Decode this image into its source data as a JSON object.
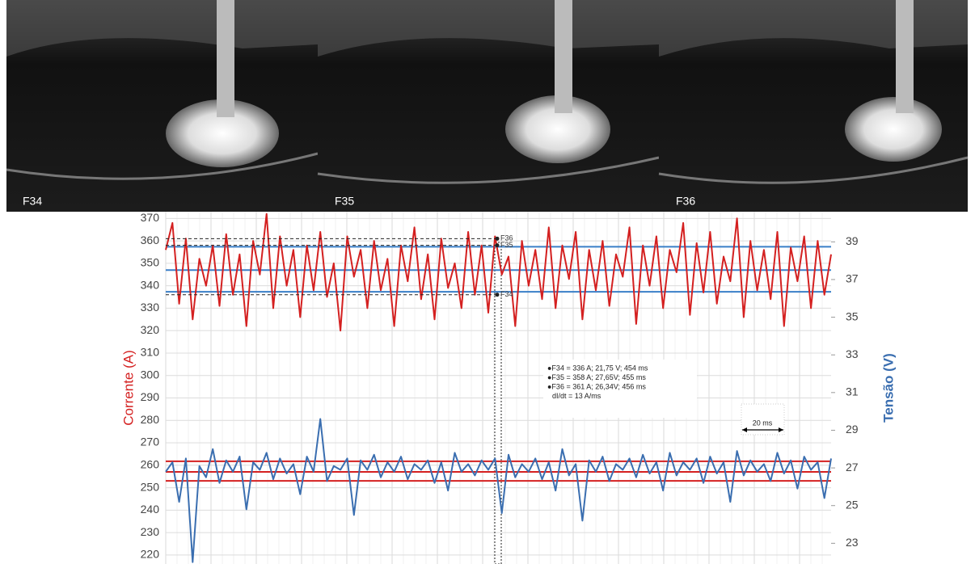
{
  "frames": [
    "F34",
    "F35",
    "F36"
  ],
  "chart_data": {
    "type": "line",
    "y_label": "Corrente (A)",
    "y2_label": "Tensão (V)",
    "ylim": [
      216,
      373
    ],
    "yticks": [
      220,
      230,
      240,
      250,
      260,
      270,
      280,
      290,
      300,
      310,
      320,
      330,
      340,
      350,
      360,
      370
    ],
    "y2lim": [
      21.9,
      40.6
    ],
    "y2ticks": [
      23,
      25,
      27,
      29,
      31,
      33,
      35,
      37,
      39
    ],
    "grid": true,
    "series": [
      {
        "name": "Corrente",
        "color": "#d42020",
        "values": [
          356,
          368,
          332,
          361,
          325,
          352,
          340,
          358,
          331,
          363,
          336,
          354,
          322,
          360,
          345,
          372,
          330,
          362,
          340,
          356,
          326,
          358,
          338,
          364,
          335,
          350,
          320,
          362,
          344,
          356,
          330,
          360,
          338,
          352,
          322,
          358,
          342,
          366,
          334,
          354,
          325,
          361,
          339,
          350,
          330,
          364,
          336,
          358,
          328,
          362,
          345,
          353,
          322,
          360,
          340,
          356,
          334,
          366,
          330,
          358,
          343,
          364,
          325,
          356,
          338,
          360,
          331,
          354,
          344,
          366,
          323,
          358,
          340,
          362,
          330,
          356,
          346,
          368,
          327,
          359,
          337,
          364,
          332,
          353,
          342,
          370,
          326,
          360,
          338,
          356,
          334,
          364,
          322,
          357,
          342,
          362,
          330,
          360,
          336,
          354
        ]
      },
      {
        "name": "Tensão",
        "color": "#3a6eb0",
        "axis": "y2",
        "values": [
          26.8,
          27.3,
          25.2,
          27.5,
          22.0,
          27.1,
          26.5,
          28.0,
          26.2,
          27.4,
          26.8,
          27.6,
          24.8,
          27.3,
          26.9,
          27.8,
          26.4,
          27.5,
          26.7,
          27.2,
          25.6,
          27.6,
          26.8,
          29.6,
          26.3,
          27.1,
          26.9,
          27.5,
          24.5,
          27.4,
          26.9,
          27.7,
          26.5,
          27.3,
          26.8,
          27.6,
          26.4,
          27.2,
          26.9,
          27.4,
          26.2,
          27.3,
          25.8,
          27.8,
          26.8,
          27.2,
          26.6,
          27.4,
          26.9,
          27.5,
          24.6,
          27.7,
          26.5,
          27.2,
          26.8,
          27.5,
          26.4,
          27.3,
          25.8,
          28.0,
          26.6,
          27.2,
          24.2,
          27.4,
          26.8,
          27.6,
          26.3,
          27.2,
          26.9,
          27.5,
          26.5,
          27.7,
          26.7,
          27.3,
          25.8,
          27.8,
          26.6,
          27.3,
          26.9,
          27.5,
          26.2,
          27.6,
          26.7,
          27.3,
          25.2,
          27.9,
          26.6,
          27.4,
          26.8,
          27.2,
          26.3,
          27.8,
          26.7,
          27.4,
          25.9,
          27.6,
          26.9,
          27.3,
          25.4,
          27.5
        ]
      }
    ],
    "reference_lines": [
      {
        "color": "#3a7fc8",
        "values": [
          357.4,
          347,
          337.3
        ]
      },
      {
        "color": "#d42020",
        "axis": "y2",
        "values": [
          27.35,
          26.79,
          26.31
        ]
      }
    ],
    "markers": [
      {
        "label": "F36",
        "value": 361
      },
      {
        "label": "F35",
        "value": 358
      },
      {
        "label": "F34",
        "value": 336
      }
    ],
    "annotations": [
      "●F34 = 336 A; 21,75 V; 454 ms",
      "●F35 = 358 A; 27,65V; 455 ms",
      "●F36 = 361 A; 26,34V; 456 ms",
      "dI/dt = 13 A/ms"
    ],
    "scale_label": "20 ms"
  }
}
